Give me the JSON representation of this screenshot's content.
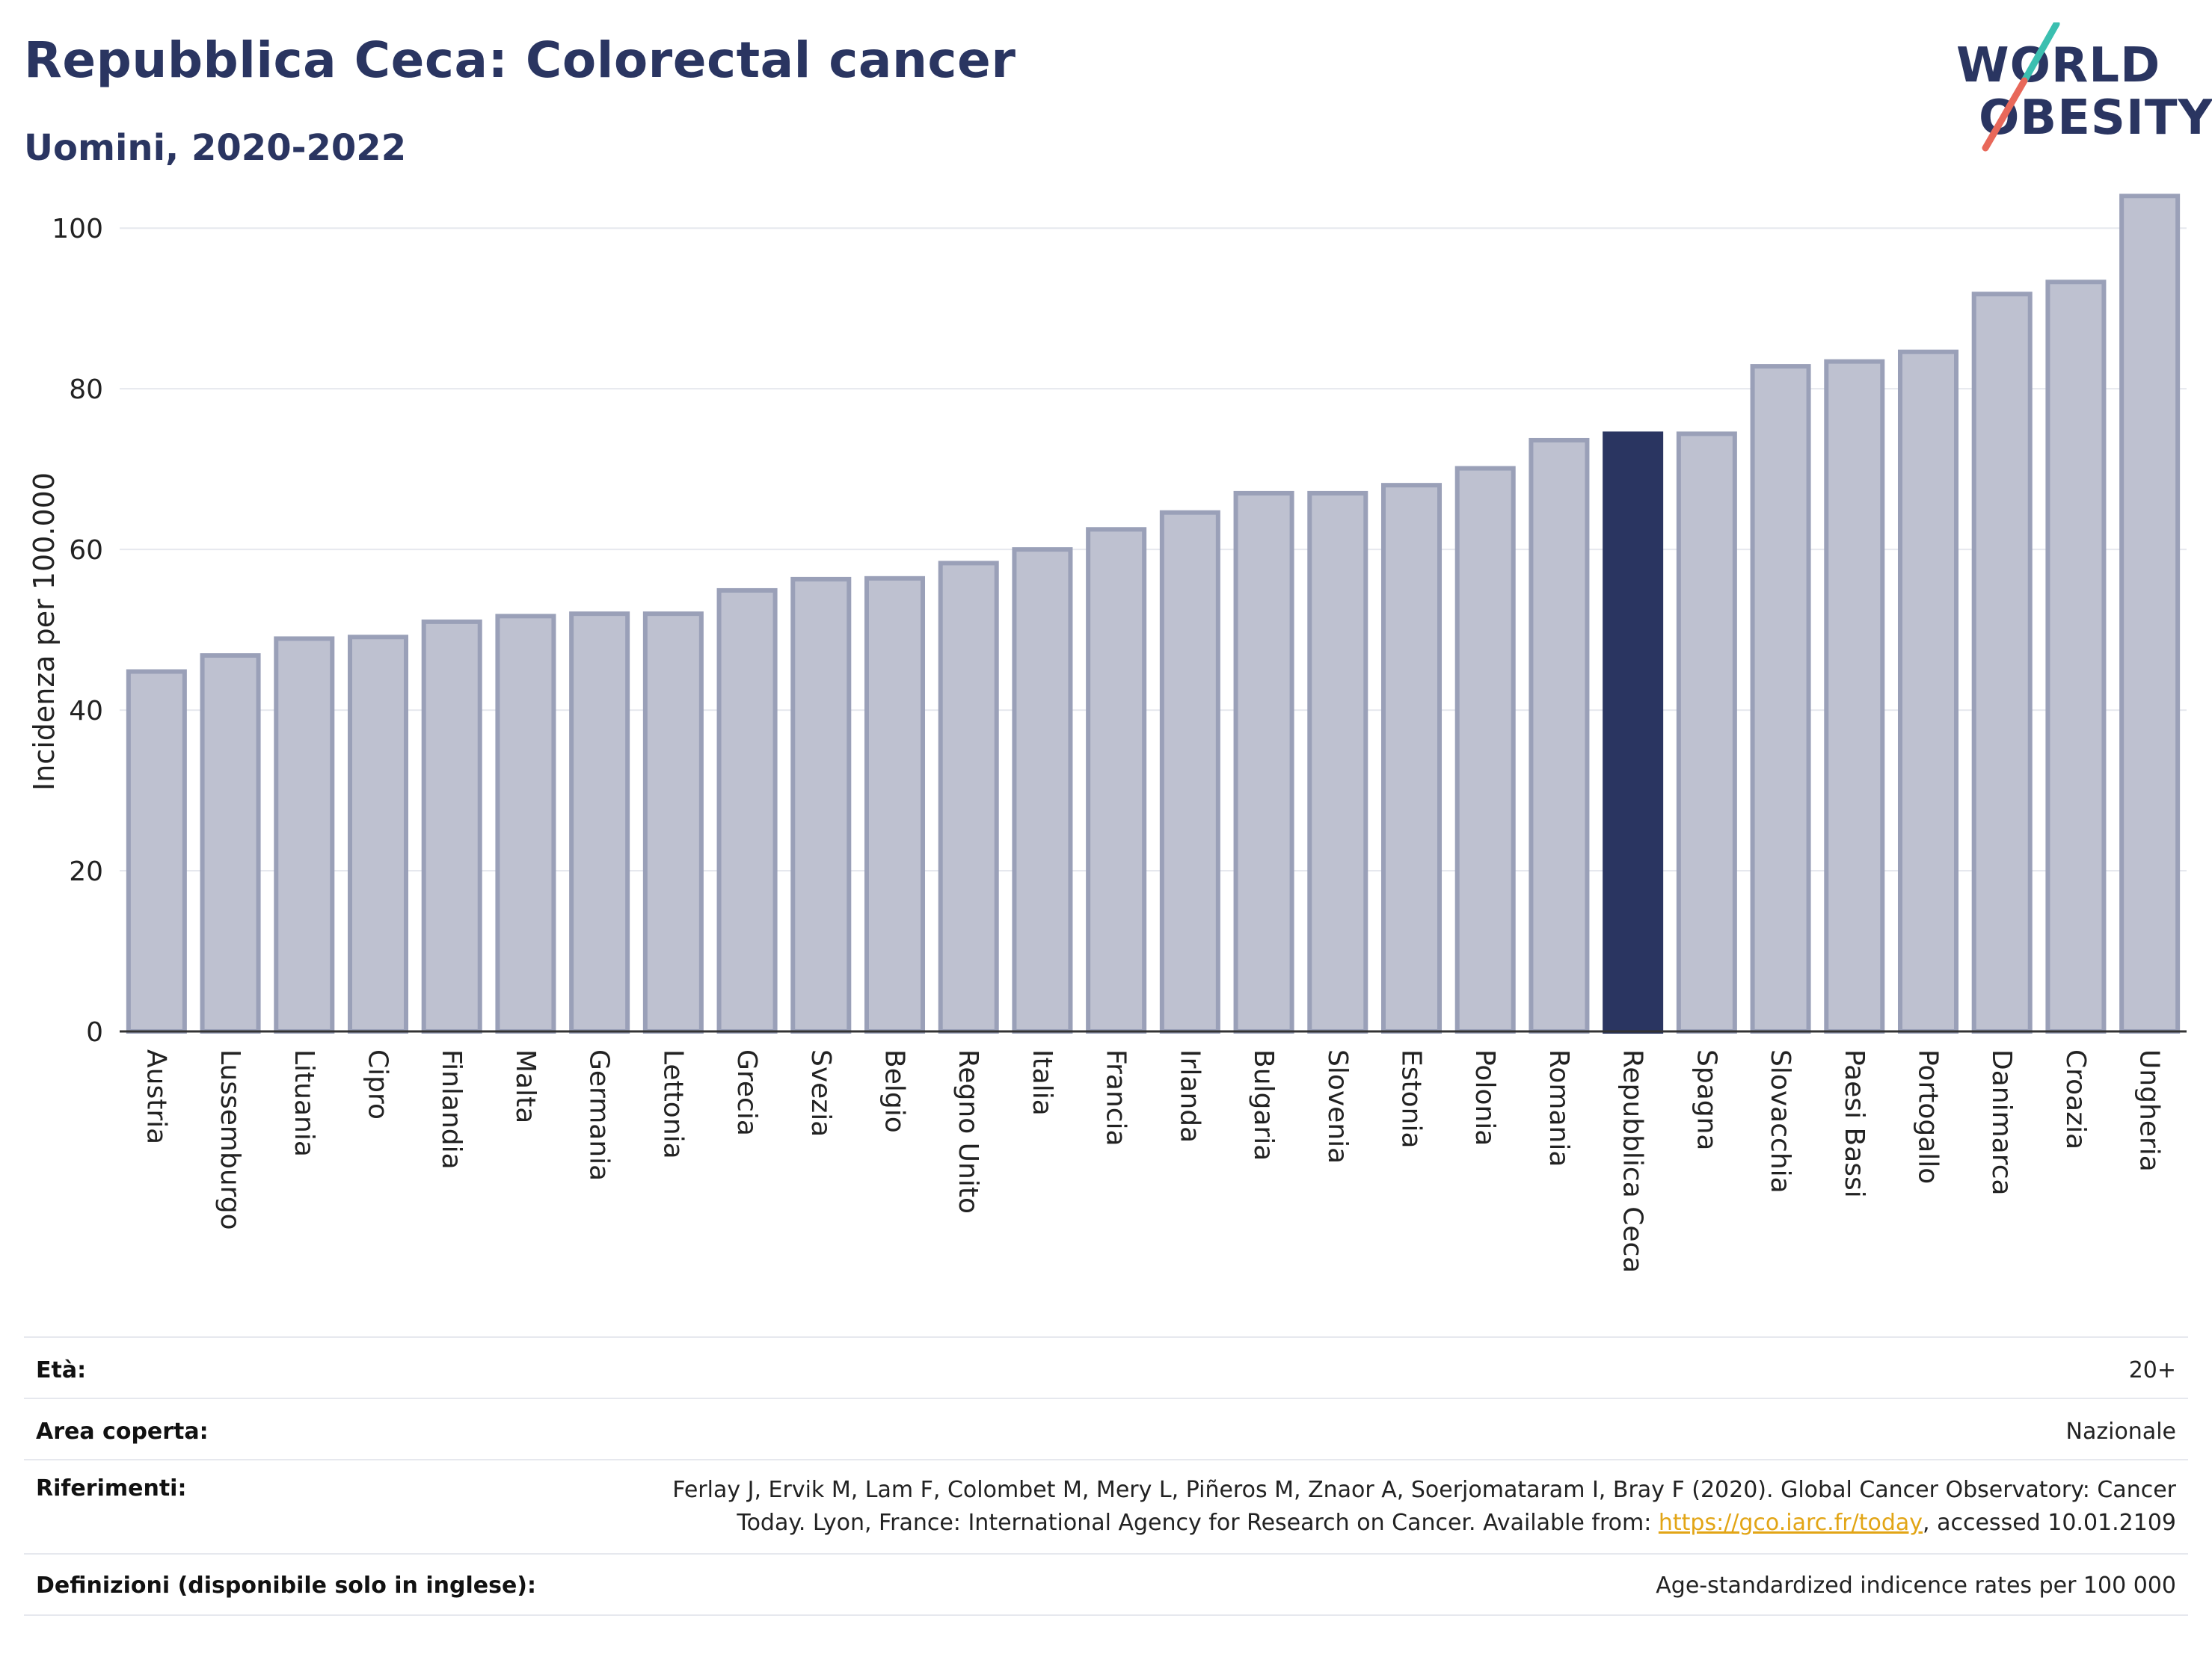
{
  "header": {
    "title": "Repubblica Ceca: Colorectal cancer",
    "subtitle": "Uomini, 2020-2022"
  },
  "logo": {
    "line1": "WORLD",
    "line2": "OBESITY",
    "colors": {
      "text": "#2a3561",
      "slash_teal": "#3bbfb0",
      "slash_red": "#e8685a"
    }
  },
  "chart_data": {
    "type": "bar",
    "ylabel": "Incidenza per 100.000",
    "xlabel": "",
    "ylim": [
      0,
      107
    ],
    "yticks": [
      0,
      20,
      40,
      60,
      80,
      100
    ],
    "grid": true,
    "categories": [
      "Austria",
      "Lussemburgo",
      "Lituania",
      "Cipro",
      "Finlandia",
      "Malta",
      "Germania",
      "Lettonia",
      "Grecia",
      "Svezia",
      "Belgio",
      "Regno Unito",
      "Italia",
      "Francia",
      "Irlanda",
      "Bulgaria",
      "Slovenia",
      "Estonia",
      "Polonia",
      "Romania",
      "Repubblica Ceca",
      "Spagna",
      "Slovacchia",
      "Paesi Bassi",
      "Portogallo",
      "Danimarca",
      "Croazia",
      "Ungheria"
    ],
    "values": [
      44.8,
      46.8,
      48.9,
      49.1,
      51.0,
      51.7,
      52.0,
      52.0,
      54.9,
      56.3,
      56.4,
      58.3,
      60.0,
      62.5,
      64.6,
      67.0,
      67.0,
      68.0,
      70.1,
      73.6,
      74.4,
      74.4,
      82.8,
      83.4,
      84.6,
      91.8,
      93.3,
      104.0
    ],
    "highlight": "Repubblica Ceca",
    "colors": {
      "bar": "#bec1d0",
      "bar_edge": "#9aa0b8",
      "highlight": "#2a3561",
      "grid": "#e6e8ee",
      "axis": "#333333"
    }
  },
  "meta": {
    "age_label": "Età:",
    "age_value": "20+",
    "area_label": "Area coperta:",
    "area_value": "Nazionale",
    "ref_label": "Riferimenti:",
    "ref_line1": "Ferlay J, Ervik M, Lam F, Colombet M, Mery L, Piñeros M, Znaor A, Soerjomataram I, Bray F (2020). Global Cancer Observatory: Cancer",
    "ref_line2_pre": "Today. Lyon, France: International Agency for Research on Cancer. Available from: ",
    "ref_link": "https://gco.iarc.fr/today",
    "ref_line2_post": ", accessed 10.01.2109",
    "def_label": "Definizioni (disponibile solo in inglese):",
    "def_value": "Age-standardized indicence rates per 100 000"
  }
}
